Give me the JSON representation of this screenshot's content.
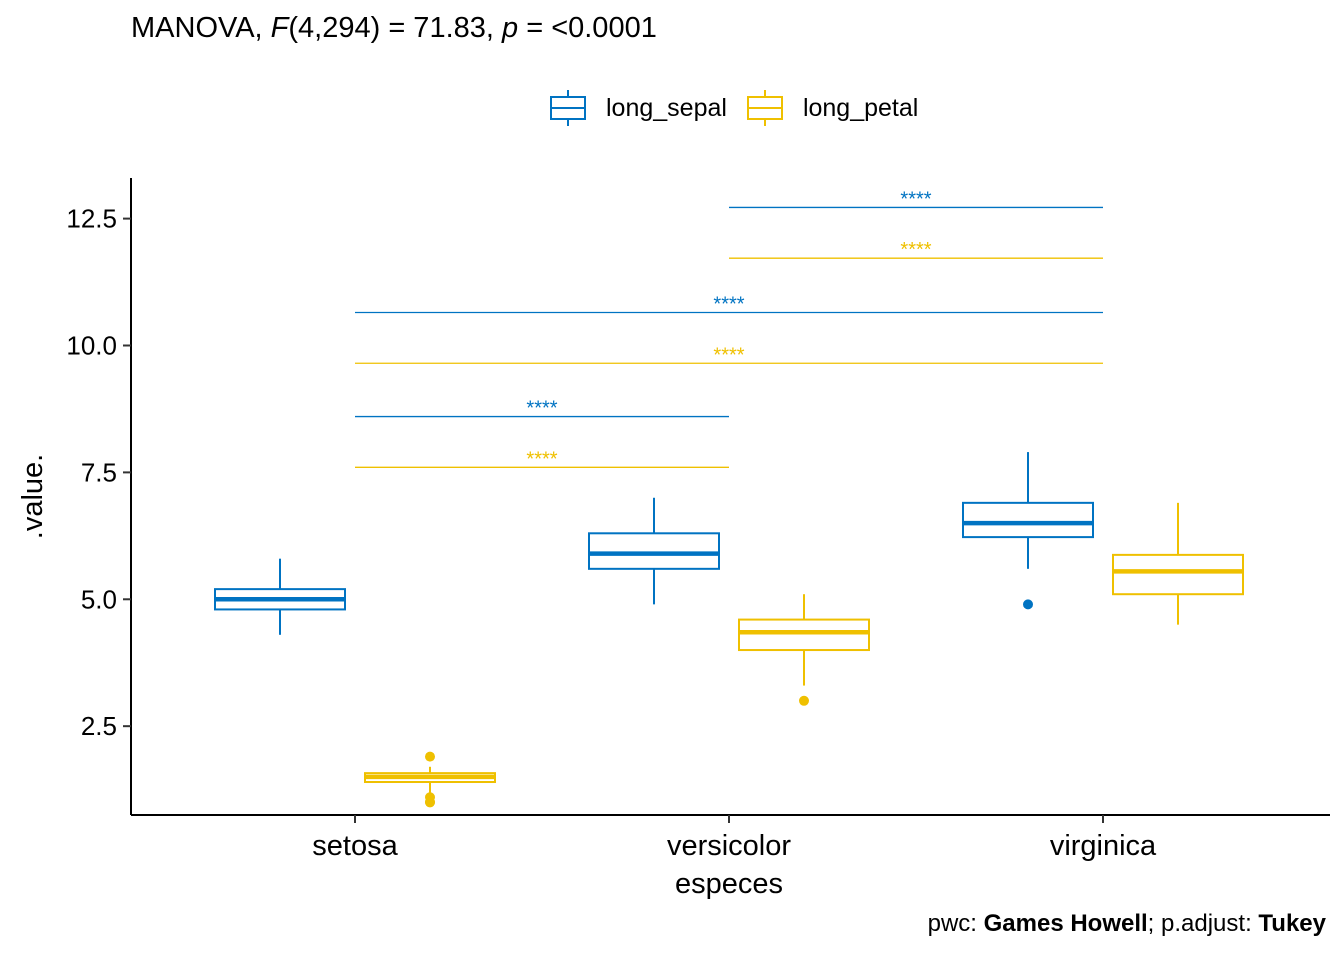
{
  "title": {
    "text_before_F": "MANOVA, ",
    "F_symbol": "F",
    "text_mid": "(4,294) = 71.83, ",
    "p_symbol": "p",
    "text_after_p": " = <0.0001"
  },
  "caption": {
    "pwc_label": "pwc: ",
    "pwc_value": "Games Howell",
    "sep": "; p.adjust: ",
    "adjust_value": "Tukey"
  },
  "colors": {
    "long_sepal": "#0073C2",
    "long_petal": "#EFC000"
  },
  "chart_data": {
    "type": "boxplot",
    "xlabel": "especes",
    "ylabel": ".value.",
    "categories": [
      "setosa",
      "versicolor",
      "virginica"
    ],
    "ylim": [
      0.75,
      13.3
    ],
    "yticks": [
      2.5,
      5.0,
      7.5,
      10.0,
      12.5
    ],
    "ytick_labels": [
      "2.5",
      "5.0",
      "7.5",
      "10.0",
      "12.5"
    ],
    "legend_position": "top",
    "grid": false,
    "series": [
      {
        "name": "long_sepal",
        "color": "#0073C2",
        "boxes": [
          {
            "category": "setosa",
            "min": 4.3,
            "q1": 4.8,
            "median": 5.0,
            "q3": 5.2,
            "max": 5.8,
            "outliers": []
          },
          {
            "category": "versicolor",
            "min": 4.9,
            "q1": 5.6,
            "median": 5.9,
            "q3": 6.3,
            "max": 7.0,
            "outliers": []
          },
          {
            "category": "virginica",
            "min": 5.6,
            "q1": 6.225,
            "median": 6.5,
            "q3": 6.9,
            "max": 7.9,
            "outliers": [
              4.9
            ]
          }
        ]
      },
      {
        "name": "long_petal",
        "color": "#EFC000",
        "boxes": [
          {
            "category": "setosa",
            "min": 1.1,
            "q1": 1.4,
            "median": 1.5,
            "q3": 1.575,
            "max": 1.7,
            "outliers": [
              1.9,
              1.0,
              1.1,
              1.0
            ]
          },
          {
            "category": "versicolor",
            "min": 3.3,
            "q1": 4.0,
            "median": 4.35,
            "q3": 4.6,
            "max": 5.1,
            "outliers": [
              3.0
            ]
          },
          {
            "category": "virginica",
            "min": 4.5,
            "q1": 5.1,
            "median": 5.55,
            "q3": 5.875,
            "max": 6.9,
            "outliers": []
          }
        ]
      }
    ],
    "comparisons": [
      {
        "series": "long_sepal",
        "from": "setosa",
        "to": "versicolor",
        "y": 8.6,
        "label": "****"
      },
      {
        "series": "long_petal",
        "from": "setosa",
        "to": "versicolor",
        "y": 7.6,
        "label": "****"
      },
      {
        "series": "long_sepal",
        "from": "setosa",
        "to": "virginica",
        "y": 10.65,
        "label": "****"
      },
      {
        "series": "long_petal",
        "from": "setosa",
        "to": "virginica",
        "y": 9.65,
        "label": "****"
      },
      {
        "series": "long_sepal",
        "from": "versicolor",
        "to": "virginica",
        "y": 12.72,
        "label": "****"
      },
      {
        "series": "long_petal",
        "from": "versicolor",
        "to": "virginica",
        "y": 11.72,
        "label": "****"
      }
    ]
  }
}
